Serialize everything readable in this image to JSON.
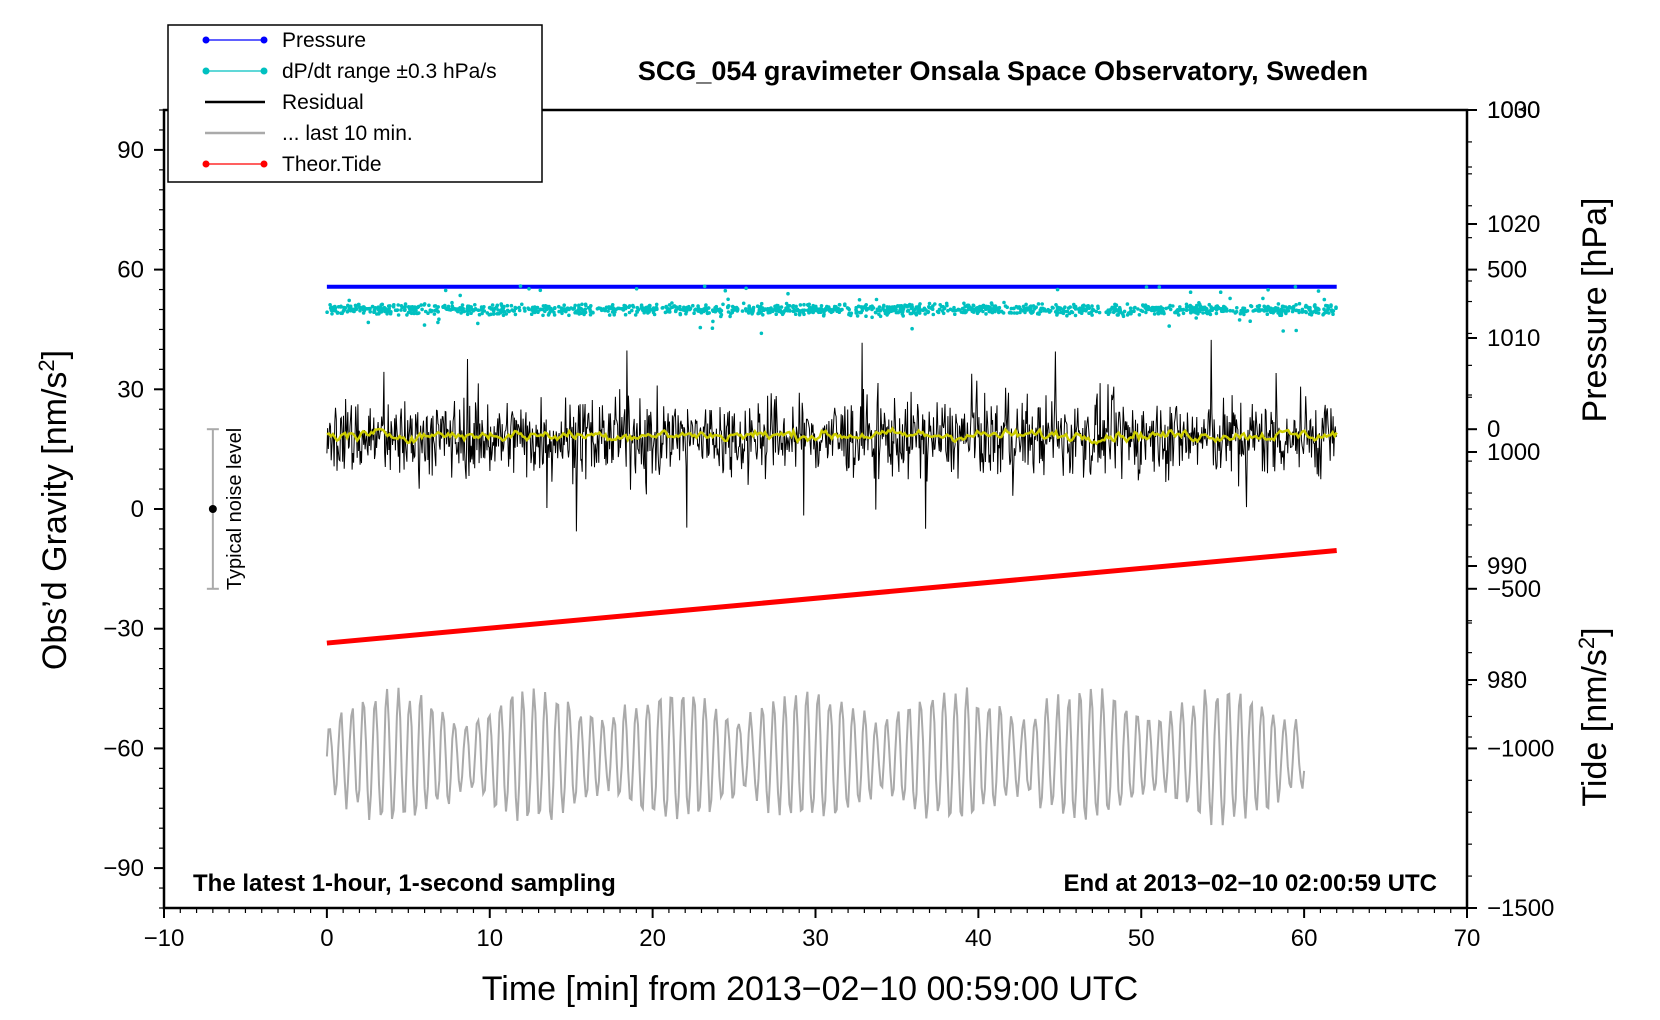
{
  "chart_data": {
    "type": "line",
    "title": "SCG_054 gravimeter Onsala Space Observatory, Sweden",
    "xlabel": "Time [min] from 2013−02−10 00:59:00 UTC",
    "ylabel_left": "Obs’d Gravity [nm/s²]",
    "ylabel_pressure": "Pressure [hPa]",
    "ylabel_tide": "Tide [nm/s²]",
    "xlim": [
      -10,
      70
    ],
    "ylim": [
      -100,
      100
    ],
    "pressure_lim": [
      960,
      1030
    ],
    "tide_lim": [
      -1500,
      1000
    ],
    "x_ticks": [
      -10,
      0,
      10,
      20,
      30,
      40,
      50,
      60,
      70
    ],
    "x_tick_labels": [
      "−10",
      "0",
      "10",
      "20",
      "30",
      "40",
      "50",
      "60",
      "70"
    ],
    "y_ticks": [
      90,
      60,
      30,
      0,
      -30,
      -60,
      -90
    ],
    "y_tick_labels": [
      "90",
      "60",
      "30",
      "0",
      "−30",
      "−60",
      "−90"
    ],
    "pressure_ticks": [
      1030,
      1020,
      1010,
      1000,
      990,
      980
    ],
    "pressure_tick_labels": [
      "1030",
      "1020",
      "1010",
      "1000",
      "990",
      "980"
    ],
    "tide_ticks": [
      1000,
      500,
      0,
      -500,
      -1000,
      -1500
    ],
    "tide_tick_labels": [
      "1000",
      "500",
      "0",
      "−500",
      "−1000",
      "−1500"
    ],
    "legend": [
      {
        "label": "Pressure",
        "color": "#0000ff",
        "marker": "dot"
      },
      {
        "label": "dP/dt range ±0.3 hPa/s",
        "color": "#00c0c0",
        "marker": "dot"
      },
      {
        "label": "Residual",
        "color": "#000000",
        "marker": "line"
      },
      {
        "label": "... last 10 min.",
        "color": "#aaaaaa",
        "marker": "line"
      },
      {
        "label": "Theor.Tide",
        "color": "#ff0000",
        "marker": "dot"
      }
    ],
    "series": [
      {
        "name": "Pressure",
        "color": "#0000ff",
        "axis": "pressure",
        "x_range": [
          0,
          62
        ],
        "value": 1014.5
      },
      {
        "name": "dP/dt range ±0.3 hPa/s",
        "color": "#00c0c0",
        "axis": "left",
        "x_range": [
          0,
          62
        ],
        "center": 50,
        "spread": 1.5,
        "max_spread": 6
      },
      {
        "name": "Residual",
        "color": "#000000",
        "axis": "left",
        "x_range": [
          0,
          62
        ],
        "center": 18,
        "range": [
          -12,
          51
        ]
      },
      {
        "name": "Residual smoothed",
        "color": "#cccc00",
        "axis": "left",
        "x_range": [
          0,
          62
        ],
        "center": 18.5,
        "range": [
          14,
          24
        ]
      },
      {
        "name": "... last 10 min.",
        "color": "#aaaaaa",
        "axis": "left",
        "x_range": [
          0,
          60
        ],
        "center": -62,
        "range": [
          -82,
          -34
        ]
      },
      {
        "name": "Theor.Tide",
        "color": "#ff0000",
        "axis": "tide",
        "x": [
          0,
          62
        ],
        "y": [
          -670,
          -380
        ]
      }
    ],
    "noise_bar": {
      "x": -7,
      "y": 0,
      "low": -20,
      "high": 20,
      "label": "Typical noise level"
    },
    "annotation_left": "The latest 1-hour, 1-second sampling",
    "annotation_right": "End at 2013−02−10 02:00:59 UTC"
  }
}
